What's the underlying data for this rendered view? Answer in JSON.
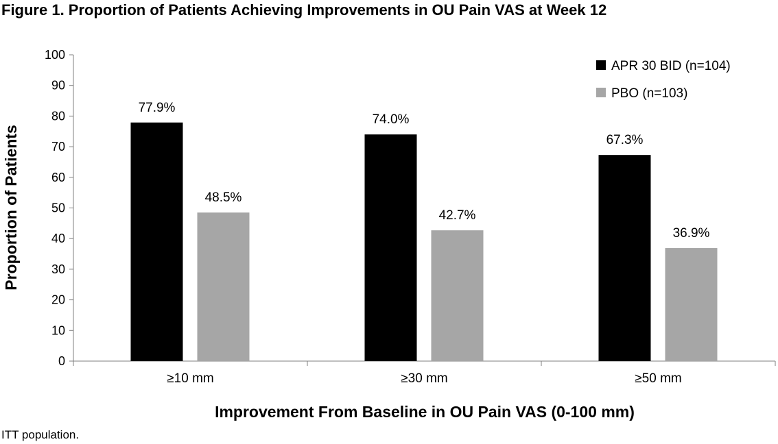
{
  "chart_data": {
    "type": "bar",
    "title": "Figure 1. Proportion of Patients Achieving Improvements in OU Pain VAS at Week 12",
    "xlabel": "Improvement From Baseline in OU Pain VAS (0-100 mm)",
    "ylabel": "Proportion of Patients",
    "ylim": [
      0,
      100
    ],
    "yticks": [
      "0",
      "10",
      "20",
      "30",
      "40",
      "50",
      "60",
      "70",
      "80",
      "90",
      "100"
    ],
    "categories": [
      "≥10 mm",
      "≥30 mm",
      "≥50 mm"
    ],
    "series": [
      {
        "name": "APR 30 BID (n=104)",
        "values": [
          77.9,
          74.0,
          67.3
        ],
        "labels": [
          "77.9%",
          "74.0%",
          "67.3%"
        ],
        "color": "#000000"
      },
      {
        "name": "PBO (n=103)",
        "values": [
          48.5,
          42.7,
          36.9
        ],
        "labels": [
          "48.5%",
          "42.7%",
          "36.9%"
        ],
        "color": "#a6a6a6"
      }
    ],
    "legend": "top-right",
    "grid": false,
    "note": "ITT population."
  }
}
